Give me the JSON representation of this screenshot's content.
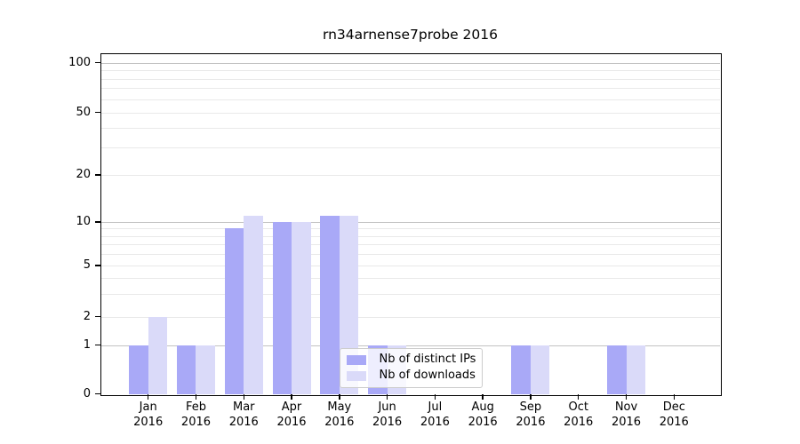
{
  "chart_data": {
    "type": "bar",
    "title": "rn34arnense7probe 2016",
    "categories": [
      "Jan 2016",
      "Feb 2016",
      "Mar 2016",
      "Apr 2016",
      "May 2016",
      "Jun 2016",
      "Jul 2016",
      "Aug 2016",
      "Sep 2016",
      "Oct 2016",
      "Nov 2016",
      "Dec 2016"
    ],
    "series": [
      {
        "name": "Nb of distinct IPs",
        "color": "#a9a9f7",
        "values": [
          1,
          1,
          9,
          10,
          11,
          1,
          0,
          0,
          1,
          0,
          1,
          0
        ]
      },
      {
        "name": "Nb of downloads",
        "color": "#dadaf9",
        "values": [
          2,
          1,
          11,
          10,
          11,
          1,
          0,
          0,
          1,
          0,
          1,
          0
        ]
      }
    ],
    "xlabel": "",
    "ylabel": "",
    "yticks": [
      0,
      1,
      2,
      5,
      10,
      20,
      50,
      100
    ],
    "ytick_labels": [
      "0",
      "1",
      "2",
      "5",
      "10",
      "20",
      "50",
      "100"
    ],
    "major_gridlines": [
      1,
      10,
      100
    ],
    "minor_gridlines": [
      2,
      3,
      4,
      5,
      6,
      7,
      8,
      9,
      20,
      30,
      40,
      50,
      60,
      70,
      80,
      90
    ],
    "yscale": "log above 1, linear 0 to 1",
    "ylim": [
      0,
      115
    ],
    "grid": true,
    "legend_position": "inside axes, lower center"
  },
  "colors": {
    "bar_distinct_ips": "#a9a9f7",
    "bar_downloads": "#dadaf9",
    "grid_major": "#c2c2c2",
    "grid_minor": "#e9e9e9",
    "spine": "#000000",
    "background": "#ffffff"
  }
}
